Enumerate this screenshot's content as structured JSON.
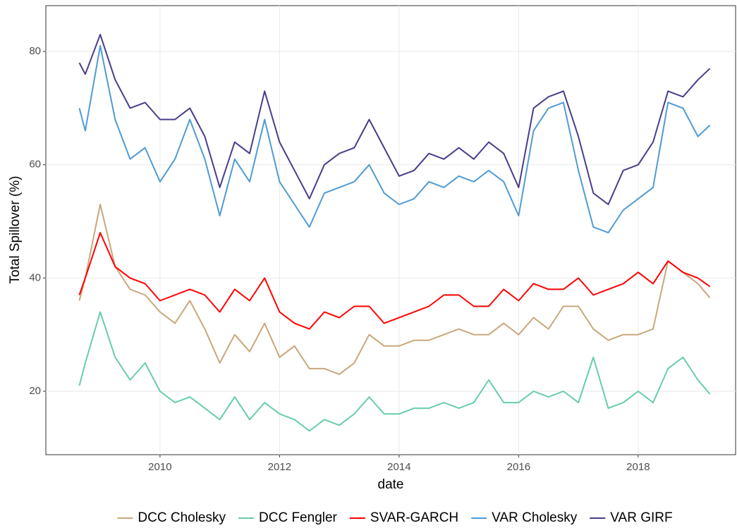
{
  "chart_data": {
    "type": "line",
    "x_label": "date",
    "y_label": "Total Spillover (%)",
    "xlim": [
      2008.09,
      2019.63
    ],
    "xticks": [
      2010,
      2012,
      2014,
      2016,
      2018
    ],
    "ylim": [
      8.8,
      88.1
    ],
    "yticks": [
      20,
      40,
      60,
      80
    ],
    "grid": true,
    "legend": "bottom",
    "x": [
      2008.65,
      2008.75,
      2009.0,
      2009.25,
      2009.5,
      2009.75,
      2010.0,
      2010.25,
      2010.5,
      2010.75,
      2011.0,
      2011.25,
      2011.5,
      2011.75,
      2012.0,
      2012.25,
      2012.5,
      2012.75,
      2013.0,
      2013.25,
      2013.5,
      2013.75,
      2014.0,
      2014.25,
      2014.5,
      2014.75,
      2015.0,
      2015.25,
      2015.5,
      2015.75,
      2016.0,
      2016.25,
      2016.5,
      2016.75,
      2017.0,
      2017.25,
      2017.5,
      2017.75,
      2018.0,
      2018.25,
      2018.5,
      2018.75,
      2019.0,
      2019.2
    ],
    "series": [
      {
        "name": "DCC Cholesky",
        "color": "#c9a77c",
        "values": [
          36,
          40,
          53,
          42,
          38,
          37,
          34,
          32,
          36,
          31,
          25,
          30,
          27,
          32,
          26,
          28,
          24,
          24,
          23,
          25,
          30,
          28,
          28,
          29,
          29,
          30,
          31,
          30,
          30,
          32,
          30,
          33,
          31,
          35,
          35,
          31,
          29,
          30,
          30,
          31,
          43,
          41,
          39,
          36.5
        ]
      },
      {
        "name": "DCC Fengler",
        "color": "#66cdaa",
        "values": [
          21,
          25,
          34,
          26,
          22,
          25,
          20,
          18,
          19,
          17,
          15,
          19,
          15,
          18,
          16,
          15,
          13,
          15,
          14,
          16,
          19,
          16,
          16,
          17,
          17,
          18,
          17,
          18,
          22,
          18,
          18,
          20,
          19,
          20,
          18,
          26,
          17,
          18,
          20,
          18,
          24,
          26,
          22,
          19.5
        ]
      },
      {
        "name": "SVAR-GARCH",
        "color": "#ff0000",
        "values": [
          37,
          40,
          48,
          42,
          40,
          39,
          36,
          37,
          38,
          37,
          34,
          38,
          36,
          40,
          34,
          32,
          31,
          34,
          33,
          35,
          35,
          32,
          33,
          34,
          35,
          37,
          37,
          35,
          35,
          38,
          36,
          39,
          38,
          38,
          40,
          37,
          38,
          39,
          41,
          39,
          43,
          41,
          40,
          38.5
        ]
      },
      {
        "name": "VAR Cholesky",
        "color": "#4f9bd4",
        "values": [
          70,
          66,
          81,
          68,
          61,
          63,
          57,
          61,
          68,
          61,
          51,
          61,
          57,
          68,
          57,
          53,
          49,
          55,
          56,
          57,
          60,
          55,
          53,
          54,
          57,
          56,
          58,
          57,
          59,
          57,
          51,
          66,
          70,
          71,
          59,
          49,
          48,
          52,
          54,
          56,
          71,
          70,
          65,
          67
        ]
      },
      {
        "name": "VAR GIRF",
        "color": "#483d8b",
        "values": [
          78,
          76,
          83,
          75,
          70,
          71,
          68,
          68,
          70,
          65,
          56,
          64,
          62,
          73,
          64,
          59,
          54,
          60,
          62,
          63,
          68,
          63,
          58,
          59,
          62,
          61,
          63,
          61,
          64,
          62,
          56,
          70,
          72,
          73,
          65,
          55,
          53,
          59,
          60,
          64,
          73,
          72,
          75,
          77
        ]
      }
    ]
  }
}
